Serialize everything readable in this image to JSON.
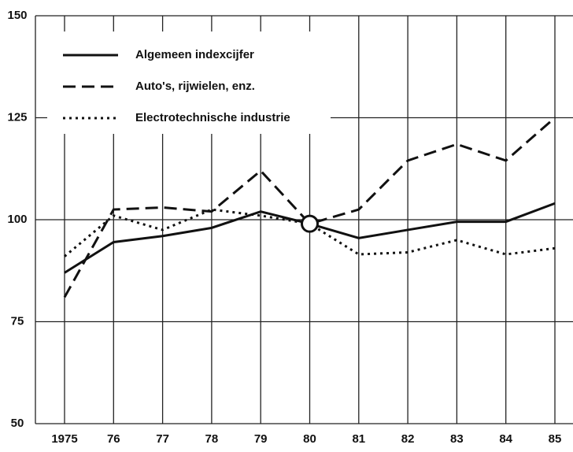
{
  "chart_data": {
    "type": "line",
    "categories": [
      "1975",
      "76",
      "77",
      "78",
      "79",
      "80",
      "81",
      "82",
      "83",
      "84",
      "85"
    ],
    "series": [
      {
        "name": "Algemeen indexcijfer",
        "color": "#111111",
        "dash": "solid",
        "values": [
          87,
          94.5,
          96,
          98,
          102,
          99,
          95.5,
          97.5,
          99.5,
          99.5,
          104
        ]
      },
      {
        "name": "Auto's, rijwielen, enz.",
        "color": "#111111",
        "dash": "dashed",
        "values": [
          81,
          102.5,
          103,
          102,
          112,
          99,
          102.5,
          114.5,
          118.5,
          114.5,
          125
        ]
      },
      {
        "name": "Electrotechnische industrie",
        "color": "#111111",
        "dash": "dotted",
        "values": [
          91,
          101,
          97.5,
          102.5,
          101,
          99,
          91.5,
          92,
          95,
          91.5,
          93
        ]
      }
    ],
    "ylim": [
      50,
      150
    ],
    "yticks": [
      50,
      75,
      100,
      125,
      150
    ],
    "grid": true
  }
}
